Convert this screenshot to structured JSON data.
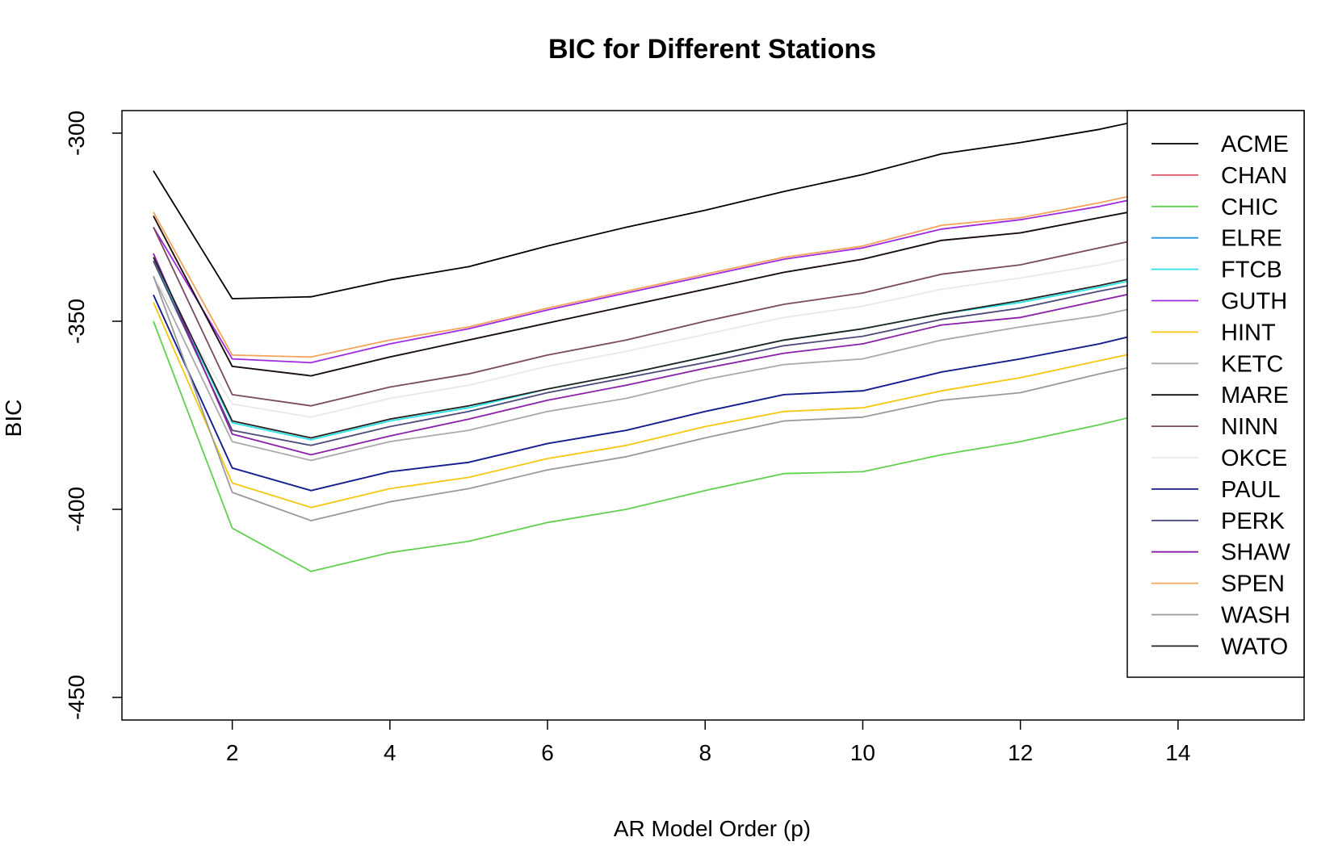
{
  "chart_data": {
    "type": "line",
    "title": "BIC for Different Stations",
    "xlabel": "AR Model Order (p)",
    "ylabel": "BIC",
    "xlim": [
      0.6,
      15.6
    ],
    "ylim": [
      -456,
      -294
    ],
    "xticks": [
      2,
      4,
      6,
      8,
      10,
      12,
      14
    ],
    "yticks": [
      -450,
      -400,
      -350,
      -300
    ],
    "legend_position": "top-right",
    "x": [
      1,
      2,
      3,
      4,
      5,
      6,
      7,
      8,
      9,
      10,
      11,
      12,
      13,
      14,
      15
    ],
    "series": [
      {
        "name": "ACME",
        "color": "#000000",
        "values": [
          -310,
          -344,
          -343.5,
          -339,
          -335.5,
          -330,
          -325,
          -320.5,
          -315.5,
          -311,
          -305.5,
          -302.5,
          -299,
          -294.5,
          -291
        ]
      },
      {
        "name": "CHAN",
        "color": "#df536b",
        "values": [
          -322,
          -362,
          -364.5,
          -359.5,
          -355,
          -350.5,
          -346,
          -341.5,
          -337,
          -333.5,
          -328.5,
          -326.5,
          -322.5,
          -318.5,
          -315
        ]
      },
      {
        "name": "CHIC",
        "color": "#61d04f",
        "values": [
          -350,
          -405,
          -416.5,
          -411.5,
          -408.5,
          -403.5,
          -400,
          -395,
          -390.5,
          -390,
          -385.5,
          -382,
          -377.5,
          -372.5,
          -369
        ]
      },
      {
        "name": "ELRE",
        "color": "#2297e6",
        "values": [
          -343,
          -389,
          -395,
          -390,
          -387.5,
          -382.5,
          -379,
          -374,
          -369.5,
          -368.5,
          -363.5,
          -360,
          -356,
          -351,
          -347.5
        ]
      },
      {
        "name": "FTCB",
        "color": "#28e2e5",
        "values": [
          -334,
          -377,
          -381.5,
          -376.5,
          -373,
          -368,
          -364,
          -359.5,
          -355,
          -352,
          -348,
          -345,
          -341,
          -336.5,
          -333
        ]
      },
      {
        "name": "GUTH",
        "color": "#9e2ae0",
        "values": [
          -325,
          -360,
          -361,
          -356,
          -352,
          -347,
          -342.5,
          -338,
          -333.5,
          -330.5,
          -325.5,
          -323,
          -319.5,
          -315,
          -311.5
        ]
      },
      {
        "name": "HINT",
        "color": "#f5c710",
        "values": [
          -345,
          -393,
          -399.5,
          -394.5,
          -391.5,
          -386.5,
          -383,
          -378,
          -374,
          -373,
          -368.5,
          -365,
          -360.5,
          -356,
          -352.5
        ]
      },
      {
        "name": "KETC",
        "color": "#aaaaaa",
        "values": [
          -338,
          -382,
          -387,
          -382,
          -379,
          -374,
          -370.5,
          -365.5,
          -361.5,
          -360,
          -355,
          -351.5,
          -348.5,
          -344,
          -340.5
        ]
      },
      {
        "name": "MARE",
        "color": "#111111",
        "values": [
          -322,
          -362,
          -364.5,
          -359.5,
          -355,
          -350.5,
          -346,
          -341.5,
          -337,
          -333.5,
          -328.5,
          -326.5,
          -322.5,
          -318.5,
          -315
        ]
      },
      {
        "name": "NINN",
        "color": "#7a4a5a",
        "values": [
          -325,
          -369.5,
          -372.5,
          -367.5,
          -364,
          -359,
          -355,
          -350,
          -345.5,
          -342.5,
          -337.5,
          -335,
          -330.5,
          -326,
          -322.5
        ]
      },
      {
        "name": "OKCE",
        "color": "#e9e9e9",
        "values": [
          -338,
          -372,
          -375.5,
          -370.5,
          -367,
          -362,
          -358,
          -353.5,
          -349,
          -346,
          -341.5,
          -338.5,
          -335,
          -330.5,
          -327
        ]
      },
      {
        "name": "PAUL",
        "color": "#1a1a8a",
        "values": [
          -343,
          -389,
          -395,
          -390,
          -387.5,
          -382.5,
          -379,
          -374,
          -369.5,
          -368.5,
          -363.5,
          -360,
          -356,
          -351,
          -347.5
        ]
      },
      {
        "name": "PERK",
        "color": "#4a4a7a",
        "values": [
          -334,
          -379,
          -383,
          -378,
          -374,
          -369,
          -365,
          -361,
          -356.5,
          -354,
          -349.5,
          -346.5,
          -342,
          -338,
          -334.5
        ]
      },
      {
        "name": "SHAW",
        "color": "#8b1fa8",
        "values": [
          -332,
          -380,
          -385.5,
          -380.5,
          -376,
          -371,
          -367,
          -362.5,
          -358.5,
          -356,
          -351,
          -349,
          -344.5,
          -340,
          -336.5
        ]
      },
      {
        "name": "SPEN",
        "color": "#f2a45a",
        "values": [
          -321,
          -359,
          -359.5,
          -355,
          -351.5,
          -346.5,
          -342,
          -337.5,
          -333,
          -330,
          -324.5,
          -322.5,
          -318.5,
          -314,
          -310.5
        ]
      },
      {
        "name": "WASH",
        "color": "#999999",
        "values": [
          -338,
          -395.5,
          -403,
          -398,
          -394.5,
          -389.5,
          -386,
          -381,
          -376.5,
          -375.5,
          -371,
          -369,
          -364,
          -359.5,
          -356
        ]
      },
      {
        "name": "WATO",
        "color": "#222222",
        "values": [
          -333,
          -376.5,
          -381,
          -376,
          -372.5,
          -368,
          -364,
          -359.5,
          -355,
          -352,
          -348,
          -344.5,
          -340.5,
          -336,
          -332.5
        ]
      }
    ]
  }
}
